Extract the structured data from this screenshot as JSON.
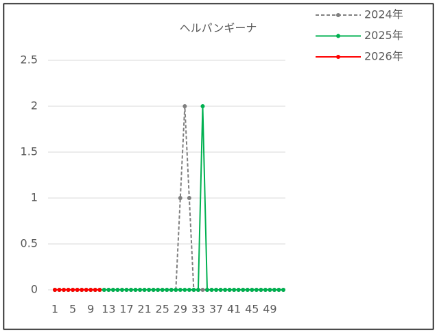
{
  "chart_data": {
    "type": "line",
    "title": "ヘルパンギーナ",
    "categories": [
      1,
      null,
      null,
      null,
      5,
      null,
      null,
      null,
      9,
      null,
      null,
      null,
      13,
      null,
      null,
      null,
      17,
      null,
      null,
      null,
      21,
      null,
      null,
      null,
      25,
      null,
      null,
      null,
      29,
      null,
      null,
      null,
      33,
      null,
      null,
      null,
      37,
      null,
      null,
      null,
      41,
      null,
      null,
      null,
      45,
      null,
      null,
      null,
      49,
      null,
      null,
      null
    ],
    "series": [
      {
        "name": "2024年",
        "color": "#7f7f7f",
        "dashed": true,
        "values": [
          0,
          0,
          0,
          0,
          0,
          0,
          0,
          0,
          0,
          0,
          0,
          0,
          0,
          0,
          0,
          0,
          0,
          0,
          0,
          0,
          0,
          0,
          0,
          0,
          0,
          0,
          0,
          0,
          1,
          2,
          1,
          0,
          0,
          0,
          0,
          0,
          0,
          0,
          0,
          0,
          0,
          0,
          0,
          0,
          0,
          0,
          0,
          0,
          0,
          0,
          0,
          0
        ]
      },
      {
        "name": "2025年",
        "color": "#00b050",
        "dashed": false,
        "values": [
          0,
          0,
          0,
          0,
          0,
          0,
          0,
          0,
          0,
          0,
          0,
          0,
          0,
          0,
          0,
          0,
          0,
          0,
          0,
          0,
          0,
          0,
          0,
          0,
          0,
          0,
          0,
          0,
          0,
          0,
          0,
          0,
          0,
          2,
          0,
          0,
          0,
          0,
          0,
          0,
          0,
          0,
          0,
          0,
          0,
          0,
          0,
          0,
          0,
          0,
          0,
          0
        ]
      },
      {
        "name": "2026年",
        "color": "#ff0000",
        "dashed": false,
        "values": [
          0,
          0,
          0,
          0,
          0,
          0,
          0,
          0,
          0,
          0,
          0,
          null,
          null,
          null,
          null,
          null,
          null,
          null,
          null,
          null,
          null,
          null,
          null,
          null,
          null,
          null,
          null,
          null,
          null,
          null,
          null,
          null,
          null,
          null,
          null,
          null,
          null,
          null,
          null,
          null,
          null,
          null,
          null,
          null,
          null,
          null,
          null,
          null,
          null,
          null,
          null,
          null
        ]
      }
    ],
    "ylim": [
      0,
      2.5
    ],
    "yticks": [
      0,
      0.5,
      1,
      1.5,
      2,
      2.5
    ],
    "grid": true,
    "legend": "top-right"
  }
}
